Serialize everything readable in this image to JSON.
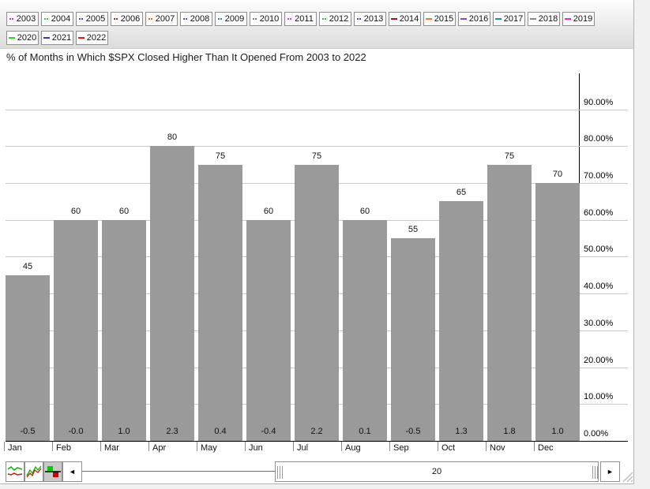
{
  "legend": {
    "rows": [
      [
        {
          "year": "2003",
          "color": "#cc33cc",
          "marker": "dotted"
        },
        {
          "year": "2004",
          "color": "#33cc33",
          "marker": "dotted"
        },
        {
          "year": "2005",
          "color": "#4444cc",
          "marker": "dotted"
        },
        {
          "year": "2006",
          "color": "#993333",
          "marker": "dotted"
        },
        {
          "year": "2007",
          "color": "#cc7733",
          "marker": "dotted"
        },
        {
          "year": "2008",
          "color": "#7744bb",
          "marker": "dotted"
        },
        {
          "year": "2009",
          "color": "#338899",
          "marker": "dotted"
        },
        {
          "year": "2010",
          "color": "#777777",
          "marker": "dotted"
        },
        {
          "year": "2011",
          "color": "#dd44dd",
          "marker": "dotted"
        },
        {
          "year": "2012",
          "color": "#33bb33",
          "marker": "dotted"
        },
        {
          "year": "2013",
          "color": "#5544bb",
          "marker": "dotted"
        },
        {
          "year": "2014",
          "color": "#aa1111",
          "marker": "solid"
        },
        {
          "year": "2015",
          "color": "#ff7722",
          "marker": "solid"
        },
        {
          "year": "2016",
          "color": "#8844dd",
          "marker": "solid"
        },
        {
          "year": "2017",
          "color": "#229999",
          "marker": "solid"
        },
        {
          "year": "2018",
          "color": "#888888",
          "marker": "solid"
        },
        {
          "year": "2019",
          "color": "#ff22cc",
          "marker": "solid"
        }
      ],
      [
        {
          "year": "2020",
          "color": "#22dd22",
          "marker": "solid"
        },
        {
          "year": "2021",
          "color": "#4433aa",
          "marker": "solid"
        },
        {
          "year": "2022",
          "color": "#ee1111",
          "marker": "solid"
        }
      ]
    ]
  },
  "chart_data": {
    "type": "bar",
    "title": "% of Months in Which $SPX Closed Higher Than It Opened From 2003 to 2022",
    "categories": [
      "Jan",
      "Feb",
      "Mar",
      "Apr",
      "May",
      "Jun",
      "Jul",
      "Aug",
      "Sep",
      "Oct",
      "Nov",
      "Dec"
    ],
    "values": [
      45,
      60,
      60,
      80,
      75,
      60,
      75,
      60,
      55,
      65,
      75,
      70
    ],
    "bar_labels": [
      "45",
      "60",
      "60",
      "80",
      "75",
      "60",
      "75",
      "60",
      "55",
      "65",
      "75",
      "70"
    ],
    "footer_values": [
      "-0.5",
      "-0.0",
      "1.0",
      "2.3",
      "0.4",
      "-0.4",
      "2.2",
      "0.1",
      "-0.5",
      "1.3",
      "1.8",
      "1.0"
    ],
    "xlabel": "",
    "ylabel": "",
    "ylim": [
      0,
      100
    ],
    "y_ticks": [
      "0.00%",
      "10.00%",
      "20.00%",
      "30.00%",
      "40.00%",
      "50.00%",
      "60.00%",
      "70.00%",
      "80.00%",
      "90.00%"
    ],
    "grid": true,
    "legend_position": "top",
    "bar_color": "#9a9a9a",
    "axis_color": "#000000",
    "gridline_color": "#c9c9c9"
  },
  "toolbar": {
    "chart_type_buttons": [
      {
        "icon": "area-lines-chart-icon",
        "selected": false
      },
      {
        "icon": "zigzag-line-chart-icon",
        "selected": false
      },
      {
        "icon": "bar-chart-icon",
        "selected": true
      }
    ],
    "scrollbar": {
      "left_arrow": "◄",
      "right_arrow": "►",
      "value": "20"
    }
  }
}
